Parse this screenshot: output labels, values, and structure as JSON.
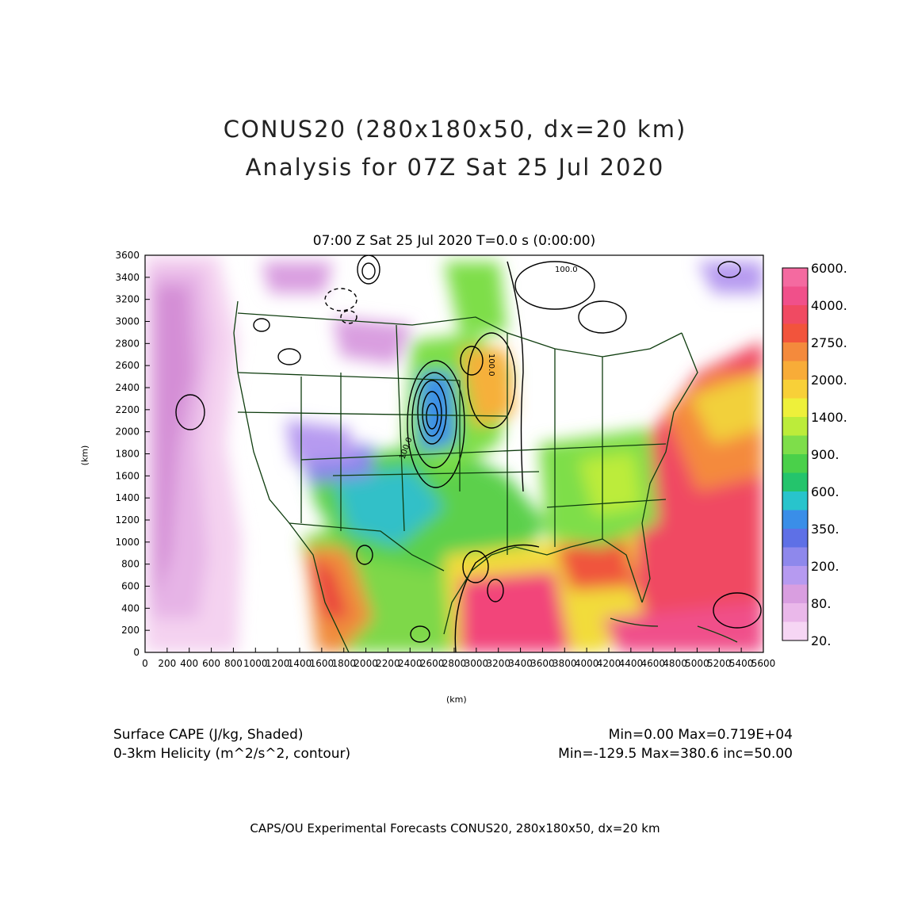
{
  "title": {
    "line1": "CONUS20 (280x180x50, dx=20 km)",
    "line2": "Analysis for 07Z Sat 25 Jul 2020"
  },
  "subtitle": "07:00 Z Sat 25 Jul 2020    T=0.0 s (0:00:00)",
  "axes": {
    "xlabel": "(km)",
    "ylabel": "(km)",
    "x_ticks": [
      "0",
      "200",
      "400",
      "600",
      "800",
      "1000",
      "1200",
      "1400",
      "1600",
      "1800",
      "2000",
      "2200",
      "2400",
      "2600",
      "2800",
      "3000",
      "3200",
      "3400",
      "3600",
      "3800",
      "4000",
      "4200",
      "4400",
      "4600",
      "4800",
      "5000",
      "5200",
      "5400",
      "5600"
    ],
    "y_ticks": [
      "0",
      "200",
      "400",
      "600",
      "800",
      "1000",
      "1200",
      "1400",
      "1600",
      "1800",
      "2000",
      "2200",
      "2400",
      "2600",
      "2800",
      "3000",
      "3200",
      "3400",
      "3600"
    ],
    "x_range": [
      0,
      5600
    ],
    "y_range": [
      0,
      3600
    ]
  },
  "colorbar": {
    "labels": [
      "20.",
      "80.",
      "200.",
      "350.",
      "600.",
      "900.",
      "1400.",
      "2000.",
      "2750.",
      "4000.",
      "6000."
    ],
    "colors": [
      "#f6d6f4",
      "#eab8ea",
      "#d99ee0",
      "#b69af0",
      "#8e88ec",
      "#5e70e6",
      "#3a8ee8",
      "#28c4cc",
      "#24c46c",
      "#4ad04a",
      "#7ede4a",
      "#bcec3a",
      "#eef03a",
      "#f8d038",
      "#f8ac38",
      "#f48a3c",
      "#f2543c",
      "#f04a62",
      "#f0508a",
      "#f46aa0"
    ]
  },
  "contour_labels": [
    "100.0",
    "100.0",
    "100.0"
  ],
  "footer": {
    "left1": "Surface CAPE (J/kg, Shaded)",
    "left2": "0-3km Helicity (m^2/s^2, contour)",
    "right1": "Min=0.00 Max=0.719E+04",
    "right2": "Min=-129.5 Max=380.6 inc=50.00"
  },
  "credit": "CAPS/OU Experimental Forecasts  CONUS20, 280x180x50, dx=20 km"
}
